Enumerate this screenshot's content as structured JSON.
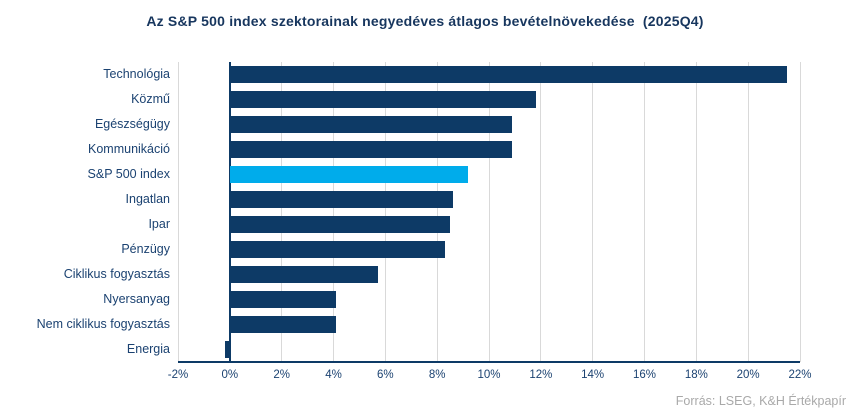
{
  "source": "Forrás: LSEG, K&H Értékpapír",
  "colors": {
    "bar": "#0D3A66",
    "highlight": "#00ACEB",
    "title_text": "#17365E",
    "label_text": "#1B4271",
    "gridline": "#D9D9D9",
    "axis": "#0D3A66",
    "source_text": "#A9A9A9"
  },
  "chart_data": {
    "type": "bar",
    "orientation": "horizontal",
    "title": "Az S&P 500 index szektorainak negyedéves átlagos bevételnövekedése  (2025Q4)",
    "categories": [
      "Technológia",
      "Közmű",
      "Egészségügy",
      "Kommunikáció",
      "S&P 500 index",
      "Ingatlan",
      "Ipar",
      "Pénzügy",
      "Ciklikus fogyasztás",
      "Nyersanyag",
      "Nem ciklikus fogyasztás",
      "Energia"
    ],
    "values": [
      21.5,
      11.8,
      10.9,
      10.9,
      9.2,
      8.6,
      8.5,
      8.3,
      5.7,
      4.1,
      4.1,
      -0.2
    ],
    "value_unit": "%",
    "highlight_category": "S&P 500 index",
    "xlim": [
      -2,
      22
    ],
    "tick_values": [
      -2,
      0,
      2,
      4,
      6,
      8,
      10,
      12,
      14,
      16,
      18,
      20,
      22
    ],
    "x_tick_labels": [
      "-2%",
      "0%",
      "2%",
      "4%",
      "6%",
      "8%",
      "10%",
      "12%",
      "14%",
      "16%",
      "18%",
      "20%",
      "22%"
    ],
    "grid": "vertical-on",
    "legend": "none",
    "zero_axis_line": true
  }
}
